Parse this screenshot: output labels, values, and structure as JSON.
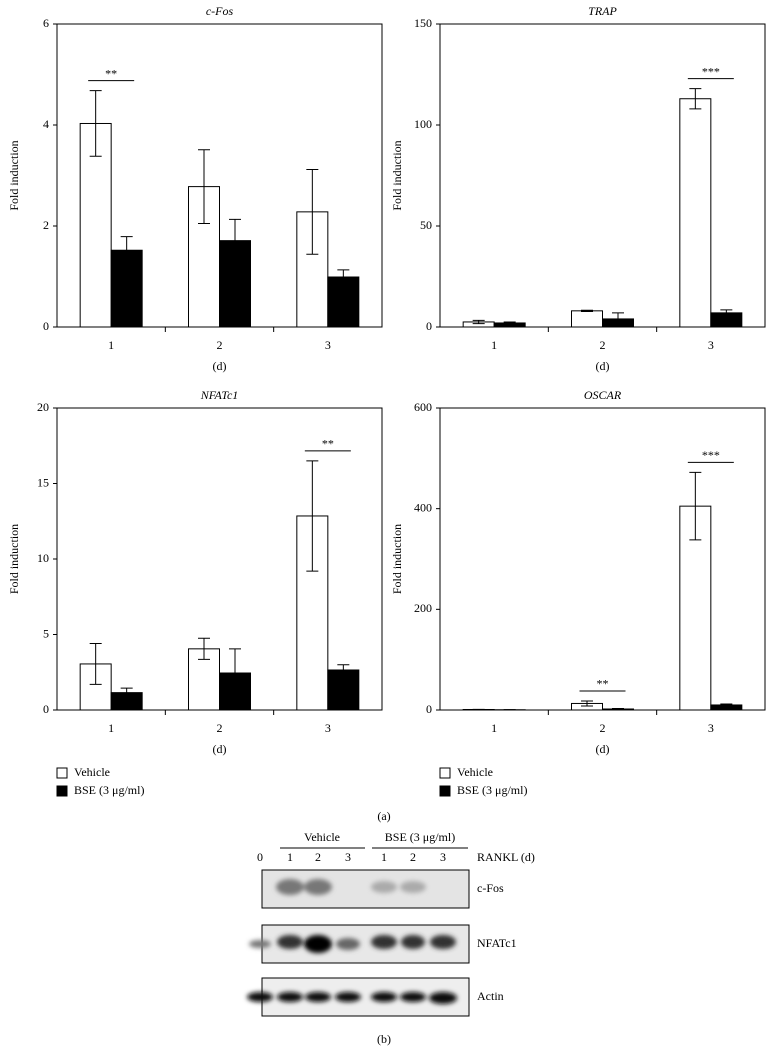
{
  "chart_data": [
    {
      "type": "bar",
      "title": "c-Fos",
      "ylabel": "Fold induction",
      "xlabel": "(d)",
      "categories": [
        "1",
        "2",
        "3"
      ],
      "series": [
        {
          "color": "#ffffff",
          "values": [
            4.03,
            2.78,
            2.28
          ],
          "errors": [
            0.65,
            0.73,
            0.84
          ]
        },
        {
          "color": "#000000",
          "values": [
            1.52,
            1.71,
            0.99
          ],
          "errors": [
            0.27,
            0.42,
            0.14
          ]
        }
      ],
      "significance": [
        "**",
        null,
        null
      ],
      "ylim": [
        0,
        6
      ],
      "yticks": [
        0,
        2,
        4,
        6
      ]
    },
    {
      "type": "bar",
      "title": "TRAP",
      "ylabel": "Fold induction",
      "xlabel": "(d)",
      "categories": [
        "1",
        "2",
        "3"
      ],
      "series": [
        {
          "color": "#ffffff",
          "values": [
            2.5,
            8,
            113
          ],
          "errors": [
            0.8,
            0.3,
            5
          ]
        },
        {
          "color": "#000000",
          "values": [
            2,
            4,
            7
          ],
          "errors": [
            0.5,
            3,
            1.5
          ]
        }
      ],
      "significance": [
        null,
        null,
        "***"
      ],
      "ylim": [
        0,
        150
      ],
      "yticks": [
        0,
        50,
        100,
        150
      ]
    },
    {
      "type": "bar",
      "title": "NFATc1",
      "ylabel": "Fold induction",
      "xlabel": "(d)",
      "categories": [
        "1",
        "2",
        "3"
      ],
      "series": [
        {
          "name": "Vehicle",
          "color": "#ffffff",
          "values": [
            3.05,
            4.05,
            12.85
          ],
          "errors": [
            1.35,
            0.7,
            3.65
          ]
        },
        {
          "name": "BSE (3 μg/ml)",
          "color": "#000000",
          "values": [
            1.15,
            2.45,
            2.65
          ],
          "errors": [
            0.3,
            1.6,
            0.35
          ]
        }
      ],
      "significance": [
        null,
        null,
        "**"
      ],
      "ylim": [
        0,
        20
      ],
      "yticks": [
        0,
        5,
        10,
        15,
        20
      ]
    },
    {
      "type": "bar",
      "title": "OSCAR",
      "ylabel": "Fold induction",
      "xlabel": "(d)",
      "categories": [
        "1",
        "2",
        "3"
      ],
      "series": [
        {
          "name": "Vehicle",
          "color": "#ffffff",
          "values": [
            1,
            13,
            405
          ],
          "errors": [
            0.3,
            5,
            67
          ]
        },
        {
          "name": "BSE (3 μg/ml)",
          "color": "#000000",
          "values": [
            0.5,
            2,
            10
          ],
          "errors": [
            0.2,
            1,
            2
          ]
        }
      ],
      "significance": [
        null,
        "**",
        "***"
      ],
      "ylim": [
        0,
        600
      ],
      "yticks": [
        0,
        200,
        400,
        600
      ]
    }
  ],
  "panel_a": "(a)",
  "panel_b": "(b)",
  "blot": {
    "lanes": [
      "0",
      "1",
      "2",
      "3",
      "1",
      "2",
      "3"
    ],
    "group_vehicle": "Vehicle",
    "group_bse": "BSE (3 μg/ml)",
    "axis_label": "RANKL (d)",
    "rows": [
      "c-Fos",
      "NFATc1",
      "Actin"
    ]
  }
}
